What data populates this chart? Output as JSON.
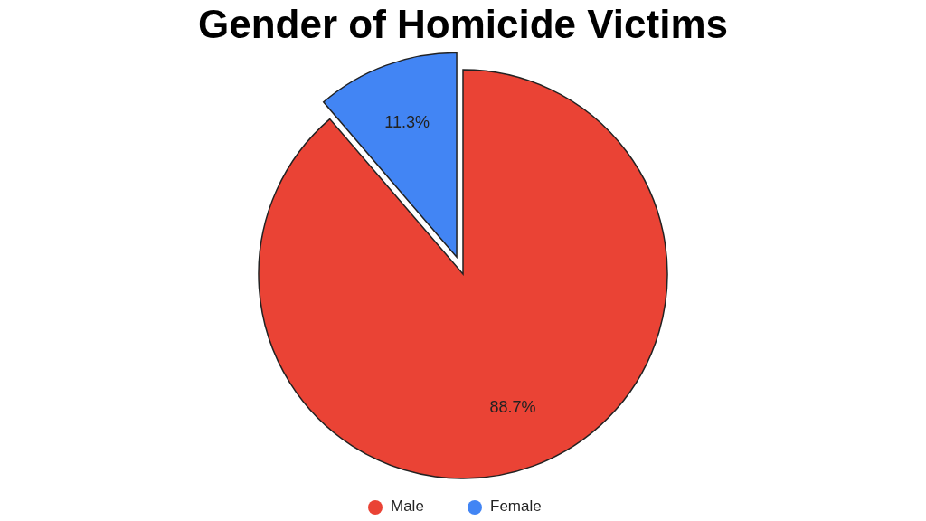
{
  "chart_data": {
    "type": "pie",
    "title": "Gender of Homicide Victims",
    "categories": [
      "Male",
      "Female"
    ],
    "values": [
      88.7,
      11.3
    ],
    "colors": [
      "#ea4335",
      "#4285f4"
    ],
    "value_labels": [
      "88.7%",
      "11.3%"
    ],
    "legend": "bottom"
  }
}
